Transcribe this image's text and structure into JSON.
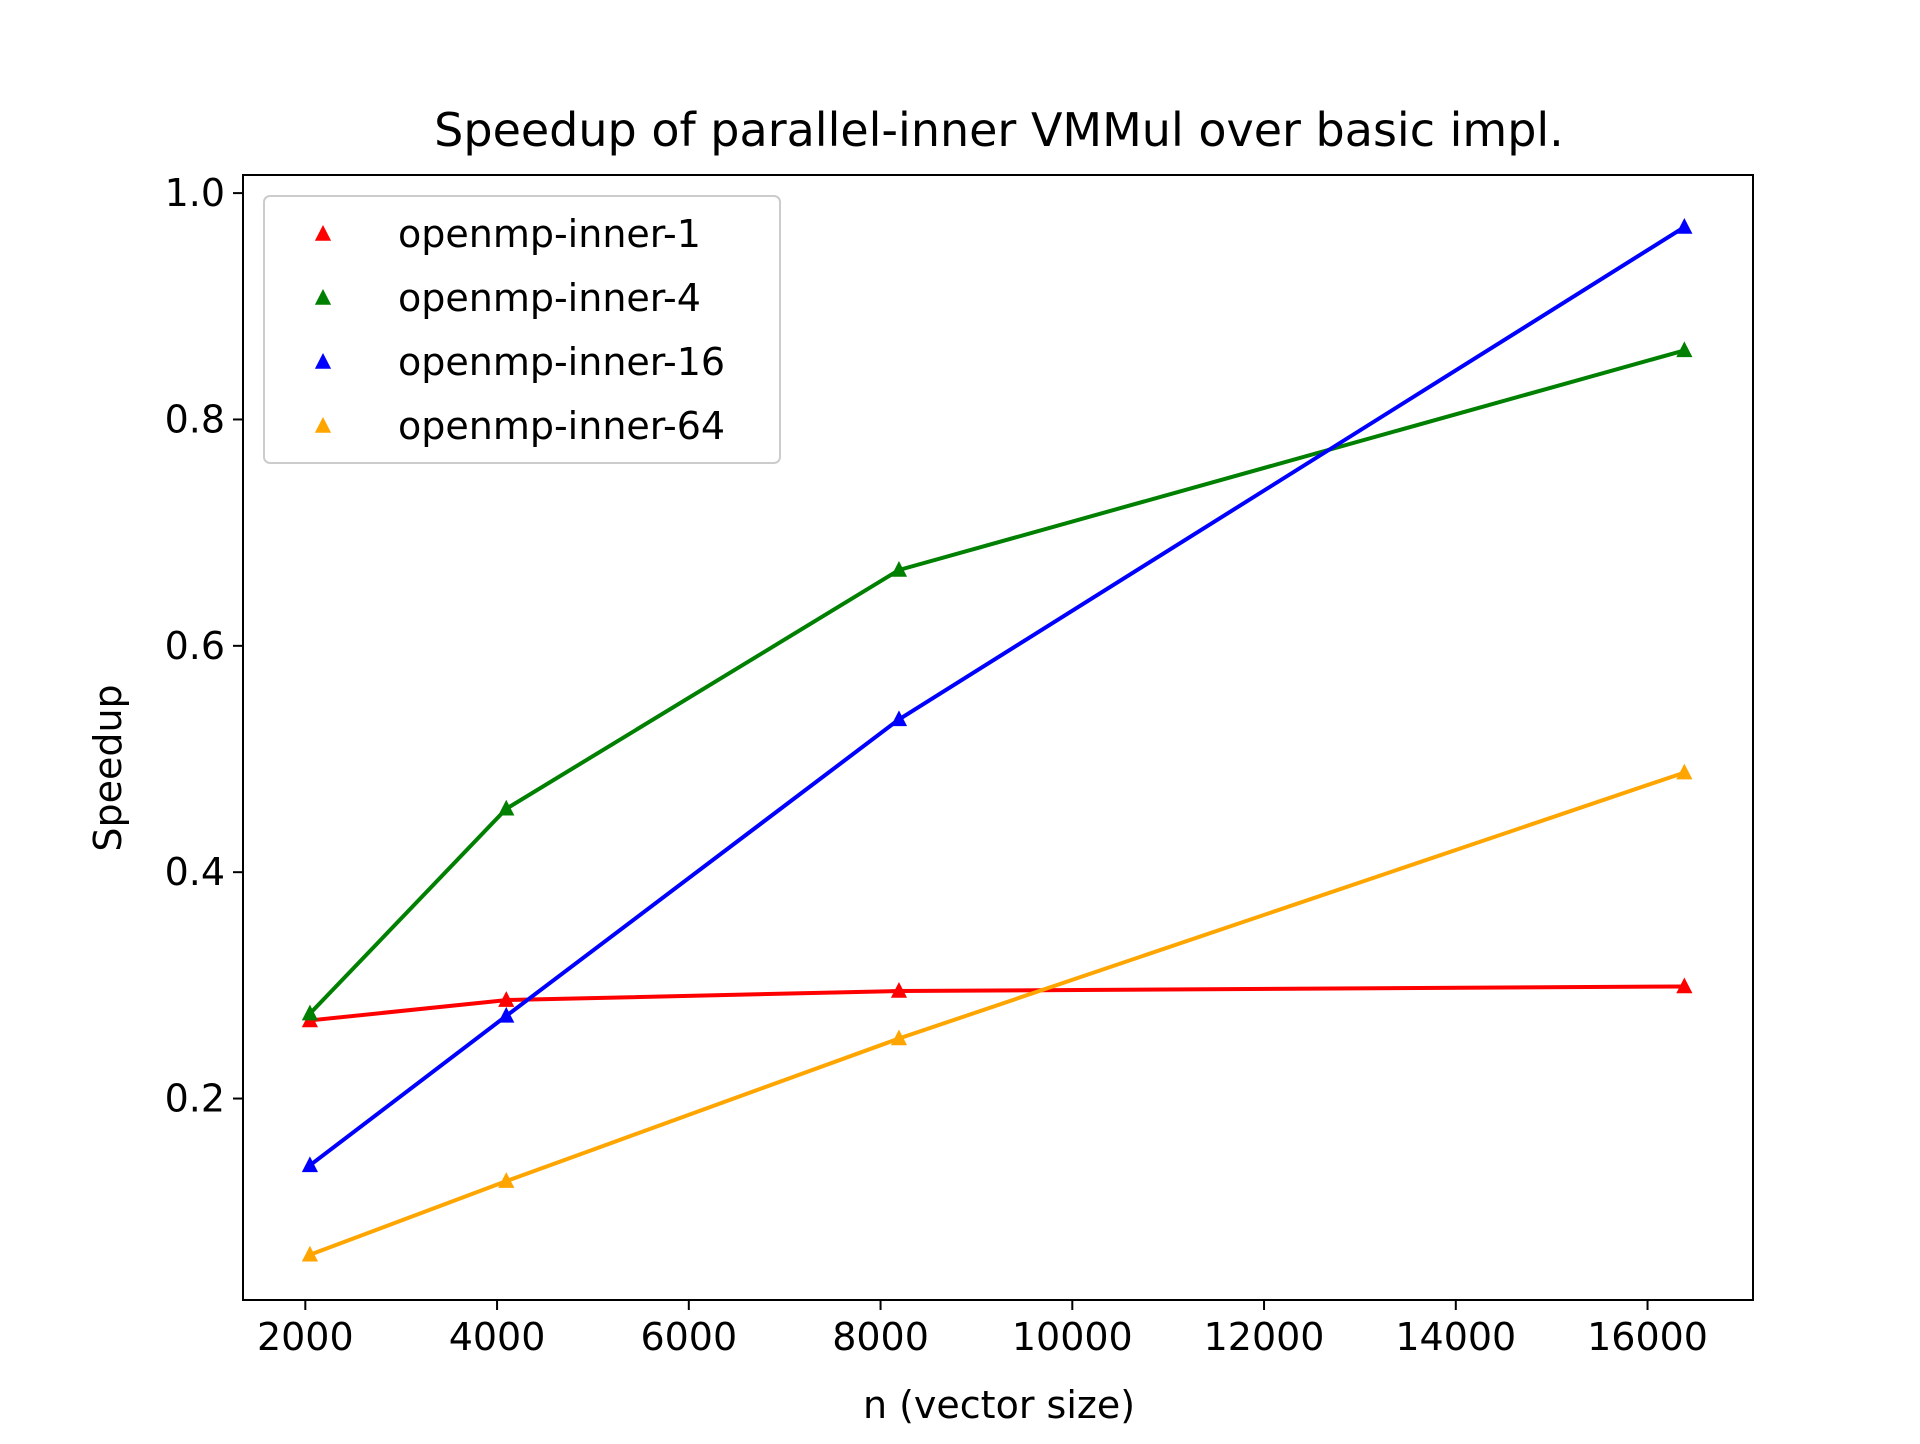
{
  "chart_data": {
    "type": "line",
    "title": "Speedup of parallel-inner VMMul over basic impl.",
    "xlabel": "n (vector size)",
    "ylabel": "Speedup",
    "x": [
      2048,
      4096,
      8192,
      16384
    ],
    "xlim": [
      1350,
      17100
    ],
    "ylim": [
      0.022,
      1.016
    ],
    "xticks": [
      2000,
      4000,
      6000,
      8000,
      10000,
      12000,
      14000,
      16000
    ],
    "xtick_labels": [
      "2000",
      "4000",
      "6000",
      "8000",
      "10000",
      "12000",
      "14000",
      "16000"
    ],
    "yticks": [
      0.2,
      0.4,
      0.6,
      0.8,
      1.0
    ],
    "ytick_labels": [
      "0.2",
      "0.4",
      "0.6",
      "0.8",
      "1.0"
    ],
    "grid": false,
    "legend_position": "top-left",
    "marker": "triangle",
    "series": [
      {
        "name": "openmp-inner-1",
        "color": "#ff0000",
        "values": [
          0.269,
          0.287,
          0.295,
          0.299
        ]
      },
      {
        "name": "openmp-inner-4",
        "color": "#008000",
        "values": [
          0.275,
          0.456,
          0.667,
          0.861
        ]
      },
      {
        "name": "openmp-inner-16",
        "color": "#0000ff",
        "values": [
          0.141,
          0.273,
          0.535,
          0.97
        ]
      },
      {
        "name": "openmp-inner-64",
        "color": "#ffa500",
        "values": [
          0.062,
          0.127,
          0.253,
          0.488
        ]
      }
    ]
  }
}
